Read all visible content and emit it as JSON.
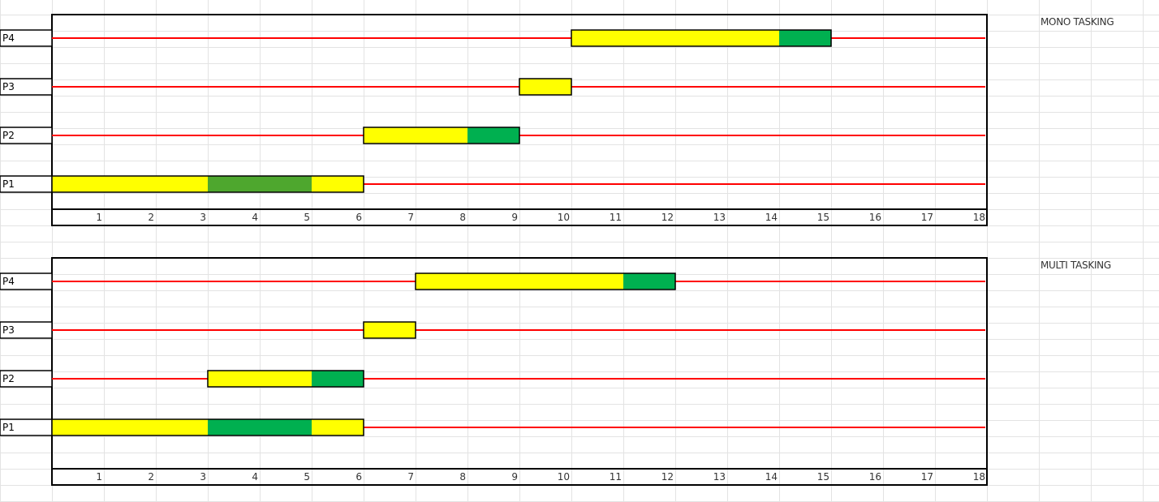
{
  "colors": {
    "wait": "#ffff00",
    "io": "#00b050",
    "io_alt": "#4ea72e",
    "timeline": "#ff0000",
    "border": "#000000"
  },
  "chart_data": [
    {
      "type": "gantt",
      "title": "MONO TASKING",
      "x_ticks": [
        "1",
        "2",
        "3",
        "4",
        "5",
        "6",
        "7",
        "8",
        "9",
        "10",
        "11",
        "12",
        "13",
        "14",
        "15",
        "16",
        "17",
        "18"
      ],
      "xlim": [
        0,
        18
      ],
      "rows": [
        {
          "name": "P4",
          "segments": [
            {
              "start": 10,
              "end": 14,
              "color": "wait"
            },
            {
              "start": 14,
              "end": 15,
              "color": "io"
            }
          ]
        },
        {
          "name": "P3",
          "segments": [
            {
              "start": 9,
              "end": 10,
              "color": "wait"
            }
          ]
        },
        {
          "name": "P2",
          "segments": [
            {
              "start": 6,
              "end": 8,
              "color": "wait"
            },
            {
              "start": 8,
              "end": 9,
              "color": "io"
            }
          ]
        },
        {
          "name": "P1",
          "segments": [
            {
              "start": 0,
              "end": 3,
              "color": "wait"
            },
            {
              "start": 3,
              "end": 5,
              "color": "io_alt"
            },
            {
              "start": 5,
              "end": 6,
              "color": "wait"
            }
          ]
        }
      ]
    },
    {
      "type": "gantt",
      "title": "MULTI TASKING",
      "x_ticks": [
        "1",
        "2",
        "3",
        "4",
        "5",
        "6",
        "7",
        "8",
        "9",
        "10",
        "11",
        "12",
        "13",
        "14",
        "15",
        "16",
        "17",
        "18"
      ],
      "xlim": [
        0,
        18
      ],
      "rows": [
        {
          "name": "P4",
          "segments": [
            {
              "start": 7,
              "end": 11,
              "color": "wait"
            },
            {
              "start": 11,
              "end": 12,
              "color": "io"
            }
          ]
        },
        {
          "name": "P3",
          "segments": [
            {
              "start": 6,
              "end": 7,
              "color": "wait"
            }
          ]
        },
        {
          "name": "P2",
          "segments": [
            {
              "start": 3,
              "end": 5,
              "color": "wait"
            },
            {
              "start": 5,
              "end": 6,
              "color": "io"
            }
          ]
        },
        {
          "name": "P1",
          "segments": [
            {
              "start": 0,
              "end": 3,
              "color": "wait"
            },
            {
              "start": 3,
              "end": 5,
              "color": "io"
            },
            {
              "start": 5,
              "end": 6,
              "color": "wait"
            }
          ]
        }
      ]
    }
  ]
}
